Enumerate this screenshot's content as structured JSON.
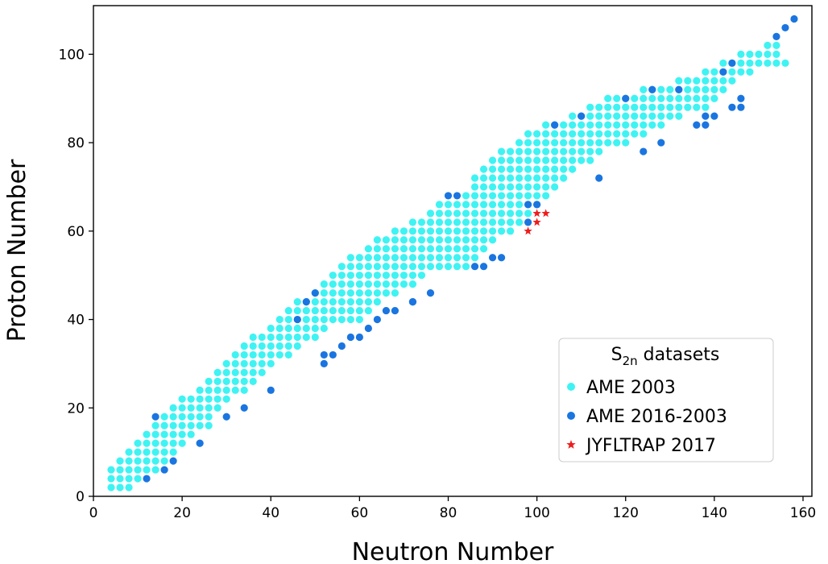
{
  "chart_data": {
    "type": "scatter",
    "xlabel": "Neutron Number",
    "ylabel": "Proton Number",
    "xlim": [
      0,
      162
    ],
    "ylim": [
      0,
      111
    ],
    "xticks": [
      0,
      20,
      40,
      60,
      80,
      100,
      120,
      140,
      160
    ],
    "yticks": [
      0,
      20,
      40,
      60,
      80,
      100
    ],
    "grid": false,
    "legend": {
      "placement": "lower-right",
      "title_main": "S",
      "title_sub": "2n",
      "title_rest": " datasets"
    },
    "series": [
      {
        "name": "AME 2003",
        "marker": "circle",
        "color": "#3ff3f3",
        "bands": [
          {
            "z": 2,
            "n": [
              4,
              8
            ]
          },
          {
            "z": 4,
            "n": [
              4,
              10
            ]
          },
          {
            "z": 6,
            "n": [
              4,
              14
            ]
          },
          {
            "z": 8,
            "n": [
              6,
              16
            ]
          },
          {
            "z": 10,
            "n": [
              8,
              18
            ]
          },
          {
            "z": 12,
            "n": [
              10,
              20
            ]
          },
          {
            "z": 14,
            "n": [
              12,
              22
            ]
          },
          {
            "z": 16,
            "n": [
              14,
              26
            ]
          },
          {
            "z": 18,
            "n": [
              16,
              26
            ]
          },
          {
            "z": 20,
            "n": [
              18,
              28
            ]
          },
          {
            "z": 22,
            "n": [
              20,
              30
            ]
          },
          {
            "z": 24,
            "n": [
              24,
              34
            ]
          },
          {
            "z": 26,
            "n": [
              26,
              36
            ]
          },
          {
            "z": 28,
            "n": [
              28,
              38
            ]
          },
          {
            "z": 30,
            "n": [
              30,
              40
            ]
          },
          {
            "z": 32,
            "n": [
              32,
              44
            ]
          },
          {
            "z": 34,
            "n": [
              34,
              46
            ]
          },
          {
            "z": 36,
            "n": [
              36,
              50
            ]
          },
          {
            "z": 38,
            "n": [
              40,
              52
            ]
          },
          {
            "z": 40,
            "n": [
              42,
              60
            ]
          },
          {
            "z": 42,
            "n": [
              44,
              62
            ]
          },
          {
            "z": 44,
            "n": [
              46,
              64
            ]
          },
          {
            "z": 46,
            "n": [
              50,
              68
            ]
          },
          {
            "z": 48,
            "n": [
              52,
              72
            ]
          },
          {
            "z": 50,
            "n": [
              54,
              74
            ]
          },
          {
            "z": 52,
            "n": [
              56,
              84
            ]
          },
          {
            "z": 54,
            "n": [
              58,
              86
            ]
          },
          {
            "z": 56,
            "n": [
              62,
              88
            ]
          },
          {
            "z": 58,
            "n": [
              64,
              90
            ]
          },
          {
            "z": 60,
            "n": [
              68,
              94
            ]
          },
          {
            "z": 62,
            "n": [
              72,
              96
            ]
          },
          {
            "z": 64,
            "n": [
              76,
              98
            ]
          },
          {
            "z": 66,
            "n": [
              78,
              100
            ]
          },
          {
            "z": 68,
            "n": [
              84,
              102
            ]
          },
          {
            "z": 70,
            "n": [
              86,
              104
            ]
          },
          {
            "z": 72,
            "n": [
              86,
              106
            ]
          },
          {
            "z": 74,
            "n": [
              88,
              108
            ]
          },
          {
            "z": 76,
            "n": [
              90,
              112
            ]
          },
          {
            "z": 78,
            "n": [
              92,
              114
            ]
          },
          {
            "z": 80,
            "n": [
              96,
              120
            ]
          },
          {
            "z": 82,
            "n": [
              98,
              124
            ]
          },
          {
            "z": 84,
            "n": [
              102,
              128
            ]
          },
          {
            "z": 86,
            "n": [
              108,
              132
            ]
          },
          {
            "z": 88,
            "n": [
              112,
              138
            ]
          },
          {
            "z": 90,
            "n": [
              116,
              140
            ]
          },
          {
            "z": 92,
            "n": [
              124,
              142
            ]
          },
          {
            "z": 94,
            "n": [
              132,
              144
            ]
          },
          {
            "z": 96,
            "n": [
              138,
              148
            ]
          },
          {
            "z": 98,
            "n": [
              142,
              156
            ]
          },
          {
            "z": 100,
            "n": [
              146,
              154
            ]
          },
          {
            "z": 102,
            "n": [
              152,
              154
            ]
          }
        ]
      },
      {
        "name": "AME 2016-2003",
        "marker": "circle",
        "color": "#1a75e0",
        "x": [
          12,
          14,
          16,
          18,
          24,
          30,
          34,
          40,
          46,
          48,
          50,
          52,
          52,
          54,
          56,
          58,
          60,
          62,
          64,
          66,
          68,
          72,
          72,
          76,
          80,
          82,
          86,
          88,
          90,
          92,
          98,
          98,
          100,
          104,
          110,
          114,
          120,
          124,
          126,
          128,
          132,
          136,
          138,
          138,
          140,
          142,
          144,
          144,
          146,
          146,
          154,
          156,
          158
        ],
        "y": [
          4,
          18,
          6,
          8,
          12,
          18,
          20,
          24,
          40,
          44,
          46,
          30,
          32,
          32,
          34,
          36,
          36,
          38,
          40,
          42,
          42,
          44,
          44,
          46,
          68,
          68,
          52,
          52,
          54,
          54,
          62,
          66,
          66,
          84,
          86,
          72,
          90,
          78,
          92,
          80,
          92,
          84,
          84,
          86,
          86,
          96,
          88,
          98,
          88,
          90,
          104,
          106,
          108
        ]
      },
      {
        "name": "JYFLTRAP 2017",
        "marker": "star",
        "color": "#ee1c1c",
        "x": [
          98,
          100,
          100,
          102
        ],
        "y": [
          60,
          62,
          64,
          64
        ]
      }
    ]
  }
}
